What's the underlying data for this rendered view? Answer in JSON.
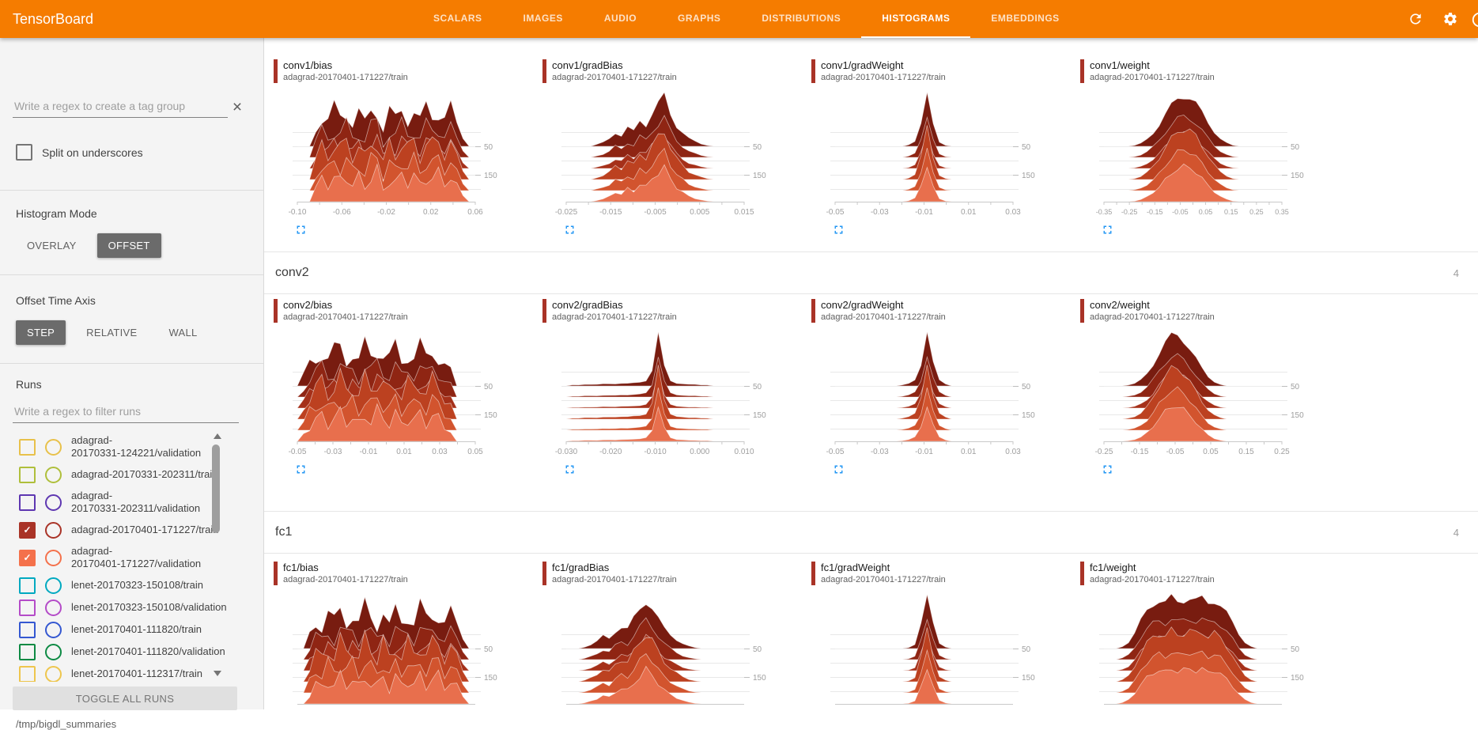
{
  "app": {
    "brand": "TensorBoard"
  },
  "header": {
    "bar_color": "#f57c00",
    "tabs": [
      {
        "label": "SCALARS",
        "active": false
      },
      {
        "label": "IMAGES",
        "active": false
      },
      {
        "label": "AUDIO",
        "active": false
      },
      {
        "label": "GRAPHS",
        "active": false
      },
      {
        "label": "DISTRIBUTIONS",
        "active": false
      },
      {
        "label": "HISTOGRAMS",
        "active": true
      },
      {
        "label": "EMBEDDINGS",
        "active": false
      }
    ],
    "icons": [
      "refresh-icon",
      "settings-icon",
      "help-icon"
    ]
  },
  "sidebar": {
    "tag_group_input_placeholder": "Write a regex to create a tag group",
    "split_on_underscores": {
      "label": "Split on underscores",
      "checked": false
    },
    "histogram_mode": {
      "label": "Histogram Mode",
      "options": [
        "OVERLAY",
        "OFFSET"
      ],
      "selected": "OFFSET"
    },
    "offset_time_axis": {
      "label": "Offset Time Axis",
      "options": [
        "STEP",
        "RELATIVE",
        "WALL"
      ],
      "selected": "STEP"
    },
    "runs": {
      "label": "Runs",
      "filter_placeholder": "Write a regex to filter runs",
      "items": [
        {
          "name": "adagrad-20170331-124221/validation",
          "color": "#e8c14a",
          "checked": false,
          "two_line": true
        },
        {
          "name": "adagrad-20170331-202311/train",
          "color": "#afbf3b",
          "checked": false,
          "two_line": false
        },
        {
          "name": "adagrad-20170331-202311/validation",
          "color": "#5e37b1",
          "checked": false,
          "two_line": true
        },
        {
          "name": "adagrad-20170401-171227/train",
          "color": "#a93327",
          "checked": true,
          "two_line": false
        },
        {
          "name": "adagrad-20170401-171227/validation",
          "color": "#f4714b",
          "checked": true,
          "two_line": true
        },
        {
          "name": "lenet-20170323-150108/train",
          "color": "#00a9c0",
          "checked": false,
          "two_line": false
        },
        {
          "name": "lenet-20170323-150108/validation",
          "color": "#b44bc8",
          "checked": false,
          "two_line": false
        },
        {
          "name": "lenet-20170401-111820/train",
          "color": "#3457d1",
          "checked": false,
          "two_line": false
        },
        {
          "name": "lenet-20170401-111820/validation",
          "color": "#0d8a44",
          "checked": false,
          "two_line": false
        },
        {
          "name": "lenet-20170401-112317/train",
          "color": "#eec64d",
          "checked": false,
          "two_line": false
        }
      ],
      "toggle_all_label": "TOGGLE ALL RUNS",
      "log_dir": "/tmp/bigdl_summaries"
    }
  },
  "main": {
    "chart_style": {
      "ridge_colors": [
        "#781c10",
        "#8f2513",
        "#a53019",
        "#bc4120",
        "#d2542e",
        "#e86f4d"
      ],
      "grid_color": "#e8e8e8",
      "axis_color": "#c9c9c9",
      "label_color": "#9e9e9e",
      "accent": "#2196f3",
      "title_bar_color": "#a93327"
    },
    "groups": [
      {
        "name": "conv1",
        "header_visible": false,
        "cards": [
          {
            "tag": "conv1/bias",
            "run": "adagrad-20170401-171227/train",
            "y_ticks": [
              "50",
              "150"
            ],
            "jitter": 0.25,
            "x_ticks": [
              "-0.10",
              "-0.06",
              "-0.02",
              "0.02",
              "0.06"
            ],
            "profile": [
              0,
              0,
              0,
              0.45,
              0.78,
              0.62,
              0.85,
              0.7,
              0.92,
              0.6,
              0.8,
              0.52,
              0.88,
              1.0,
              0.42,
              0.8,
              0.62,
              0.95,
              0.72,
              0.88,
              0.58,
              0.9,
              0.78,
              0.94,
              0.7,
              0.85,
              0.5,
              0.25,
              0,
              0
            ]
          },
          {
            "tag": "conv1/gradBias",
            "run": "adagrad-20170401-171227/train",
            "y_ticks": [
              "50",
              "150"
            ],
            "jitter": 0.1,
            "x_ticks": [
              "-0.025",
              "-0.015",
              "-0.005",
              "0.005",
              "0.015"
            ],
            "profile": [
              0,
              0,
              0,
              0,
              0,
              0.04,
              0.08,
              0.15,
              0.28,
              0.22,
              0.38,
              0.3,
              0.52,
              0.44,
              0.68,
              0.85,
              1.0,
              0.66,
              0.42,
              0.28,
              0.16,
              0.1,
              0.05,
              0.02,
              0,
              0,
              0,
              0,
              0,
              0
            ]
          },
          {
            "tag": "conv1/gradWeight",
            "run": "adagrad-20170401-171227/train",
            "y_ticks": [
              "50",
              "150"
            ],
            "jitter": 0.05,
            "x_ticks": [
              "-0.05",
              "-0.03",
              "-0.01",
              "0.01",
              "0.03"
            ],
            "profile": [
              0,
              0,
              0,
              0,
              0,
              0,
              0,
              0,
              0,
              0,
              0,
              0,
              0.03,
              0.1,
              0.45,
              1.0,
              0.42,
              0.08,
              0.02,
              0,
              0,
              0,
              0,
              0,
              0,
              0,
              0,
              0,
              0,
              0
            ]
          },
          {
            "tag": "conv1/weight",
            "run": "adagrad-20170401-171227/train",
            "y_ticks": [
              "50",
              "150"
            ],
            "jitter": 0.07,
            "x_ticks": [
              "-0.35",
              "-0.25",
              "-0.15",
              "-0.05",
              "0.05",
              "0.15",
              "0.25",
              "0.35"
            ],
            "profile": [
              0,
              0,
              0,
              0,
              0,
              0.02,
              0.06,
              0.14,
              0.26,
              0.42,
              0.62,
              0.8,
              0.94,
              1.0,
              0.96,
              0.84,
              0.66,
              0.46,
              0.28,
              0.15,
              0.07,
              0.02,
              0,
              0,
              0,
              0,
              0,
              0,
              0,
              0
            ]
          }
        ]
      },
      {
        "name": "conv2",
        "count": "4",
        "header_visible": true,
        "cards": [
          {
            "tag": "conv2/bias",
            "run": "adagrad-20170401-171227/train",
            "y_ticks": [
              "50",
              "150"
            ],
            "jitter": 0.25,
            "x_ticks": [
              "-0.05",
              "-0.03",
              "-0.01",
              "0.01",
              "0.03",
              "0.05"
            ],
            "profile": [
              0,
              0.25,
              0.55,
              0.72,
              0.88,
              0.62,
              0.8,
              0.95,
              0.68,
              0.85,
              0.58,
              0.92,
              0.74,
              1.0,
              0.8,
              0.66,
              0.9,
              0.6,
              0.84,
              0.72,
              0.92,
              0.65,
              0.88,
              0.76,
              0.55,
              0.35,
              0,
              0,
              0,
              0
            ]
          },
          {
            "tag": "conv2/gradBias",
            "run": "adagrad-20170401-171227/train",
            "y_ticks": [
              "50",
              "150"
            ],
            "jitter": 0.05,
            "x_ticks": [
              "-0.030",
              "-0.020",
              "-0.010",
              "0.000",
              "0.010"
            ],
            "profile": [
              0,
              0.02,
              0.02,
              0.03,
              0.03,
              0.03,
              0.04,
              0.04,
              0.04,
              0.05,
              0.05,
              0.06,
              0.07,
              0.1,
              0.3,
              1.0,
              0.38,
              0.1,
              0.05,
              0.04,
              0.03,
              0.03,
              0.02,
              0.02,
              0,
              0,
              0,
              0,
              0,
              0
            ]
          },
          {
            "tag": "conv2/gradWeight",
            "run": "adagrad-20170401-171227/train",
            "y_ticks": [
              "50",
              "150"
            ],
            "jitter": 0.05,
            "x_ticks": [
              "-0.05",
              "-0.03",
              "-0.01",
              "0.01",
              "0.03"
            ],
            "profile": [
              0,
              0,
              0,
              0,
              0,
              0,
              0,
              0,
              0,
              0,
              0,
              0.02,
              0.05,
              0.12,
              0.4,
              1.0,
              0.45,
              0.12,
              0.04,
              0,
              0,
              0,
              0,
              0,
              0,
              0,
              0,
              0,
              0,
              0
            ]
          },
          {
            "tag": "conv2/weight",
            "run": "adagrad-20170401-171227/train",
            "y_ticks": [
              "50",
              "150"
            ],
            "jitter": 0.07,
            "x_ticks": [
              "-0.25",
              "-0.15",
              "-0.05",
              "0.05",
              "0.15",
              "0.25"
            ],
            "profile": [
              0,
              0,
              0,
              0,
              0.02,
              0.05,
              0.12,
              0.24,
              0.42,
              0.65,
              0.85,
              0.98,
              1.0,
              0.9,
              0.74,
              0.54,
              0.34,
              0.18,
              0.08,
              0.03,
              0,
              0,
              0,
              0,
              0,
              0,
              0,
              0,
              0,
              0
            ]
          }
        ]
      },
      {
        "name": "fc1",
        "count": "4",
        "header_visible": true,
        "cards": [
          {
            "tag": "fc1/bias",
            "run": "adagrad-20170401-171227/train",
            "y_ticks": [
              "50",
              "150"
            ],
            "jitter": 0.25,
            "x_ticks": [],
            "profile": [
              0,
              0,
              0.35,
              0.68,
              0.55,
              0.85,
              0.62,
              0.92,
              0.7,
              0.88,
              0.58,
              0.95,
              0.75,
              0.6,
              1.0,
              0.52,
              0.85,
              0.68,
              0.9,
              0.62,
              0.95,
              0.7,
              0.85,
              0.92,
              0.64,
              0.8,
              0.55,
              0.3,
              0,
              0
            ]
          },
          {
            "tag": "fc1/gradBias",
            "run": "adagrad-20170401-171227/train",
            "y_ticks": [
              "50",
              "150"
            ],
            "jitter": 0.1,
            "x_ticks": [],
            "profile": [
              0,
              0,
              0,
              0.03,
              0.08,
              0.15,
              0.25,
              0.2,
              0.35,
              0.45,
              0.4,
              0.6,
              0.8,
              1.0,
              0.85,
              0.6,
              0.4,
              0.28,
              0.18,
              0.1,
              0.05,
              0.02,
              0,
              0,
              0,
              0,
              0,
              0,
              0,
              0
            ]
          },
          {
            "tag": "fc1/gradWeight",
            "run": "adagrad-20170401-171227/train",
            "y_ticks": [
              "50",
              "150"
            ],
            "jitter": 0.05,
            "x_ticks": [],
            "profile": [
              0,
              0,
              0,
              0,
              0,
              0,
              0,
              0,
              0,
              0,
              0,
              0,
              0.02,
              0.08,
              0.5,
              1.0,
              0.48,
              0.1,
              0.03,
              0,
              0,
              0,
              0,
              0,
              0,
              0,
              0,
              0,
              0,
              0
            ]
          },
          {
            "tag": "fc1/weight",
            "run": "adagrad-20170401-171227/train",
            "y_ticks": [
              "50",
              "150"
            ],
            "jitter": 0.07,
            "x_ticks": [],
            "profile": [
              0,
              0,
              0,
              0.04,
              0.12,
              0.3,
              0.55,
              0.75,
              0.88,
              0.95,
              0.9,
              1.0,
              0.92,
              0.96,
              1.0,
              0.94,
              0.98,
              0.9,
              0.95,
              0.85,
              0.7,
              0.5,
              0.28,
              0.12,
              0.04,
              0,
              0,
              0,
              0,
              0
            ]
          }
        ]
      }
    ]
  }
}
